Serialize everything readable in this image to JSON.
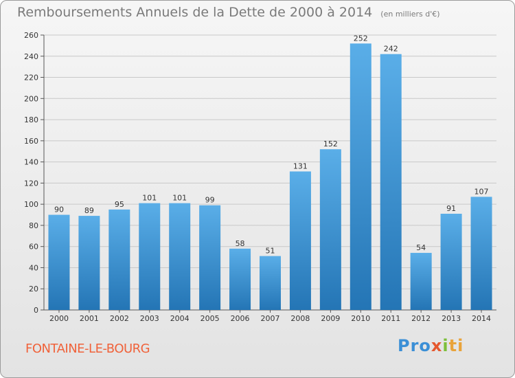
{
  "title": "Remboursements Annuels de la Dette de 2000 à 2014",
  "subtitle": "(en milliers d'€)",
  "commune": "FONTAINE-LE-BOURG",
  "logo": {
    "p1": "Pro",
    "p2": "x",
    "p3": "i",
    "p4": "ti"
  },
  "colors": {
    "bar_top": "#5aaee8",
    "bar_bottom": "#2475b5",
    "grid": "#c8c8c8",
    "title": "#7a7a7a",
    "commune": "#f0623a"
  },
  "chart_data": {
    "type": "bar",
    "title": "Remboursements Annuels de la Dette de 2000 à 2014",
    "subtitle": "(en milliers d'€)",
    "categories": [
      "2000",
      "2001",
      "2002",
      "2003",
      "2004",
      "2005",
      "2006",
      "2007",
      "2008",
      "2009",
      "2010",
      "2011",
      "2012",
      "2013",
      "2014"
    ],
    "values": [
      90,
      89,
      95,
      101,
      101,
      99,
      58,
      51,
      131,
      152,
      252,
      242,
      54,
      91,
      107
    ],
    "xlabel": "",
    "ylabel": "",
    "ylim": [
      0,
      260
    ],
    "yticks": [
      0,
      20,
      40,
      60,
      80,
      100,
      120,
      140,
      160,
      180,
      200,
      220,
      240,
      260
    ],
    "grid": true,
    "data_labels": true
  }
}
